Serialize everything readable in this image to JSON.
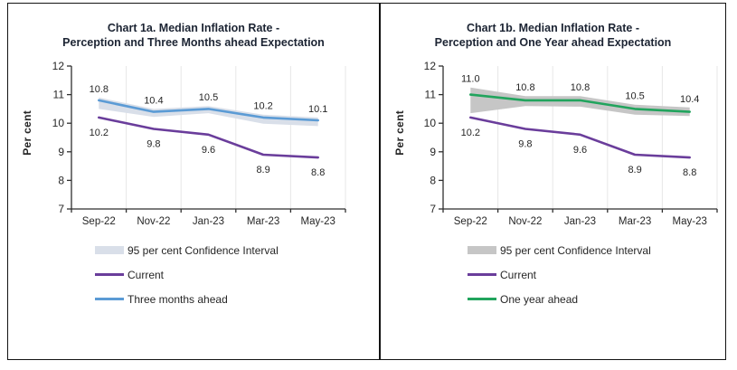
{
  "panels": [
    {
      "title_line1": "Chart 1a. Median Inflation Rate -",
      "title_line2": "Perception and Three Months ahead Expectation",
      "y_axis_label": "Per cent",
      "legend": [
        {
          "label": "95 per cent Confidence Interval"
        },
        {
          "label": "Current"
        },
        {
          "label": "Three months ahead"
        }
      ]
    },
    {
      "title_line1": "Chart 1b. Median Inflation Rate -",
      "title_line2": "Perception and One Year ahead Expectation",
      "y_axis_label": "Per cent",
      "legend": [
        {
          "label": "95 per cent Confidence Interval"
        },
        {
          "label": "Current"
        },
        {
          "label": "One year ahead"
        }
      ]
    }
  ],
  "chart_data": [
    {
      "type": "line",
      "title": "Chart 1a. Median Inflation Rate - Perception and Three Months ahead Expectation",
      "xlabel": "",
      "ylabel": "Per cent",
      "ylim": [
        7,
        12
      ],
      "yticks": [
        7,
        8,
        9,
        10,
        11,
        12
      ],
      "categories": [
        "Sep-22",
        "Nov-22",
        "Jan-23",
        "Mar-23",
        "May-23"
      ],
      "series": [
        {
          "name": "Current",
          "color": "#6a3d9b",
          "label_position": "below",
          "values": [
            10.2,
            9.8,
            9.6,
            8.9,
            8.8
          ]
        },
        {
          "name": "Three months ahead",
          "color": "#5b9bd5",
          "label_position": "above",
          "values": [
            10.8,
            10.4,
            10.5,
            10.2,
            10.1
          ]
        }
      ],
      "confidence_interval": {
        "name": "95 per cent Confidence Interval",
        "around": "Three months ahead",
        "color": "#d9dfe9",
        "upper": [
          10.9,
          10.5,
          10.6,
          10.3,
          10.2
        ],
        "lower": [
          10.5,
          10.22,
          10.35,
          9.98,
          9.9
        ]
      },
      "legend_position": "bottom-left",
      "grid": "faint vertical gridlines at category boundaries, no horizontal gridlines"
    },
    {
      "type": "line",
      "title": "Chart 1b. Median Inflation Rate - Perception and One Year ahead Expectation",
      "xlabel": "",
      "ylabel": "Per cent",
      "ylim": [
        7,
        12
      ],
      "yticks": [
        7,
        8,
        9,
        10,
        11,
        12
      ],
      "categories": [
        "Sep-22",
        "Nov-22",
        "Jan-23",
        "Mar-23",
        "May-23"
      ],
      "series": [
        {
          "name": "Current",
          "color": "#6a3d9b",
          "label_position": "below",
          "values": [
            10.2,
            9.8,
            9.6,
            8.9,
            8.8
          ]
        },
        {
          "name": "One year ahead",
          "color": "#21a45d",
          "label_position": "above",
          "values": [
            11.0,
            10.8,
            10.8,
            10.5,
            10.4
          ]
        }
      ],
      "confidence_interval": {
        "name": "95 per cent Confidence Interval",
        "around": "One year ahead",
        "color": "#c6c6c6",
        "upper": [
          11.25,
          10.95,
          10.95,
          10.65,
          10.55
        ],
        "lower": [
          10.35,
          10.6,
          10.58,
          10.3,
          10.25
        ]
      },
      "legend_position": "bottom-left",
      "grid": "faint vertical gridlines at category boundaries, no horizontal gridlines"
    }
  ],
  "colors": {
    "frame_border": "#121212",
    "title_text": "#1c2433",
    "axis_line": "#2f2f2f",
    "tick_label": "#262626",
    "gridline": "#e7e7e7"
  }
}
